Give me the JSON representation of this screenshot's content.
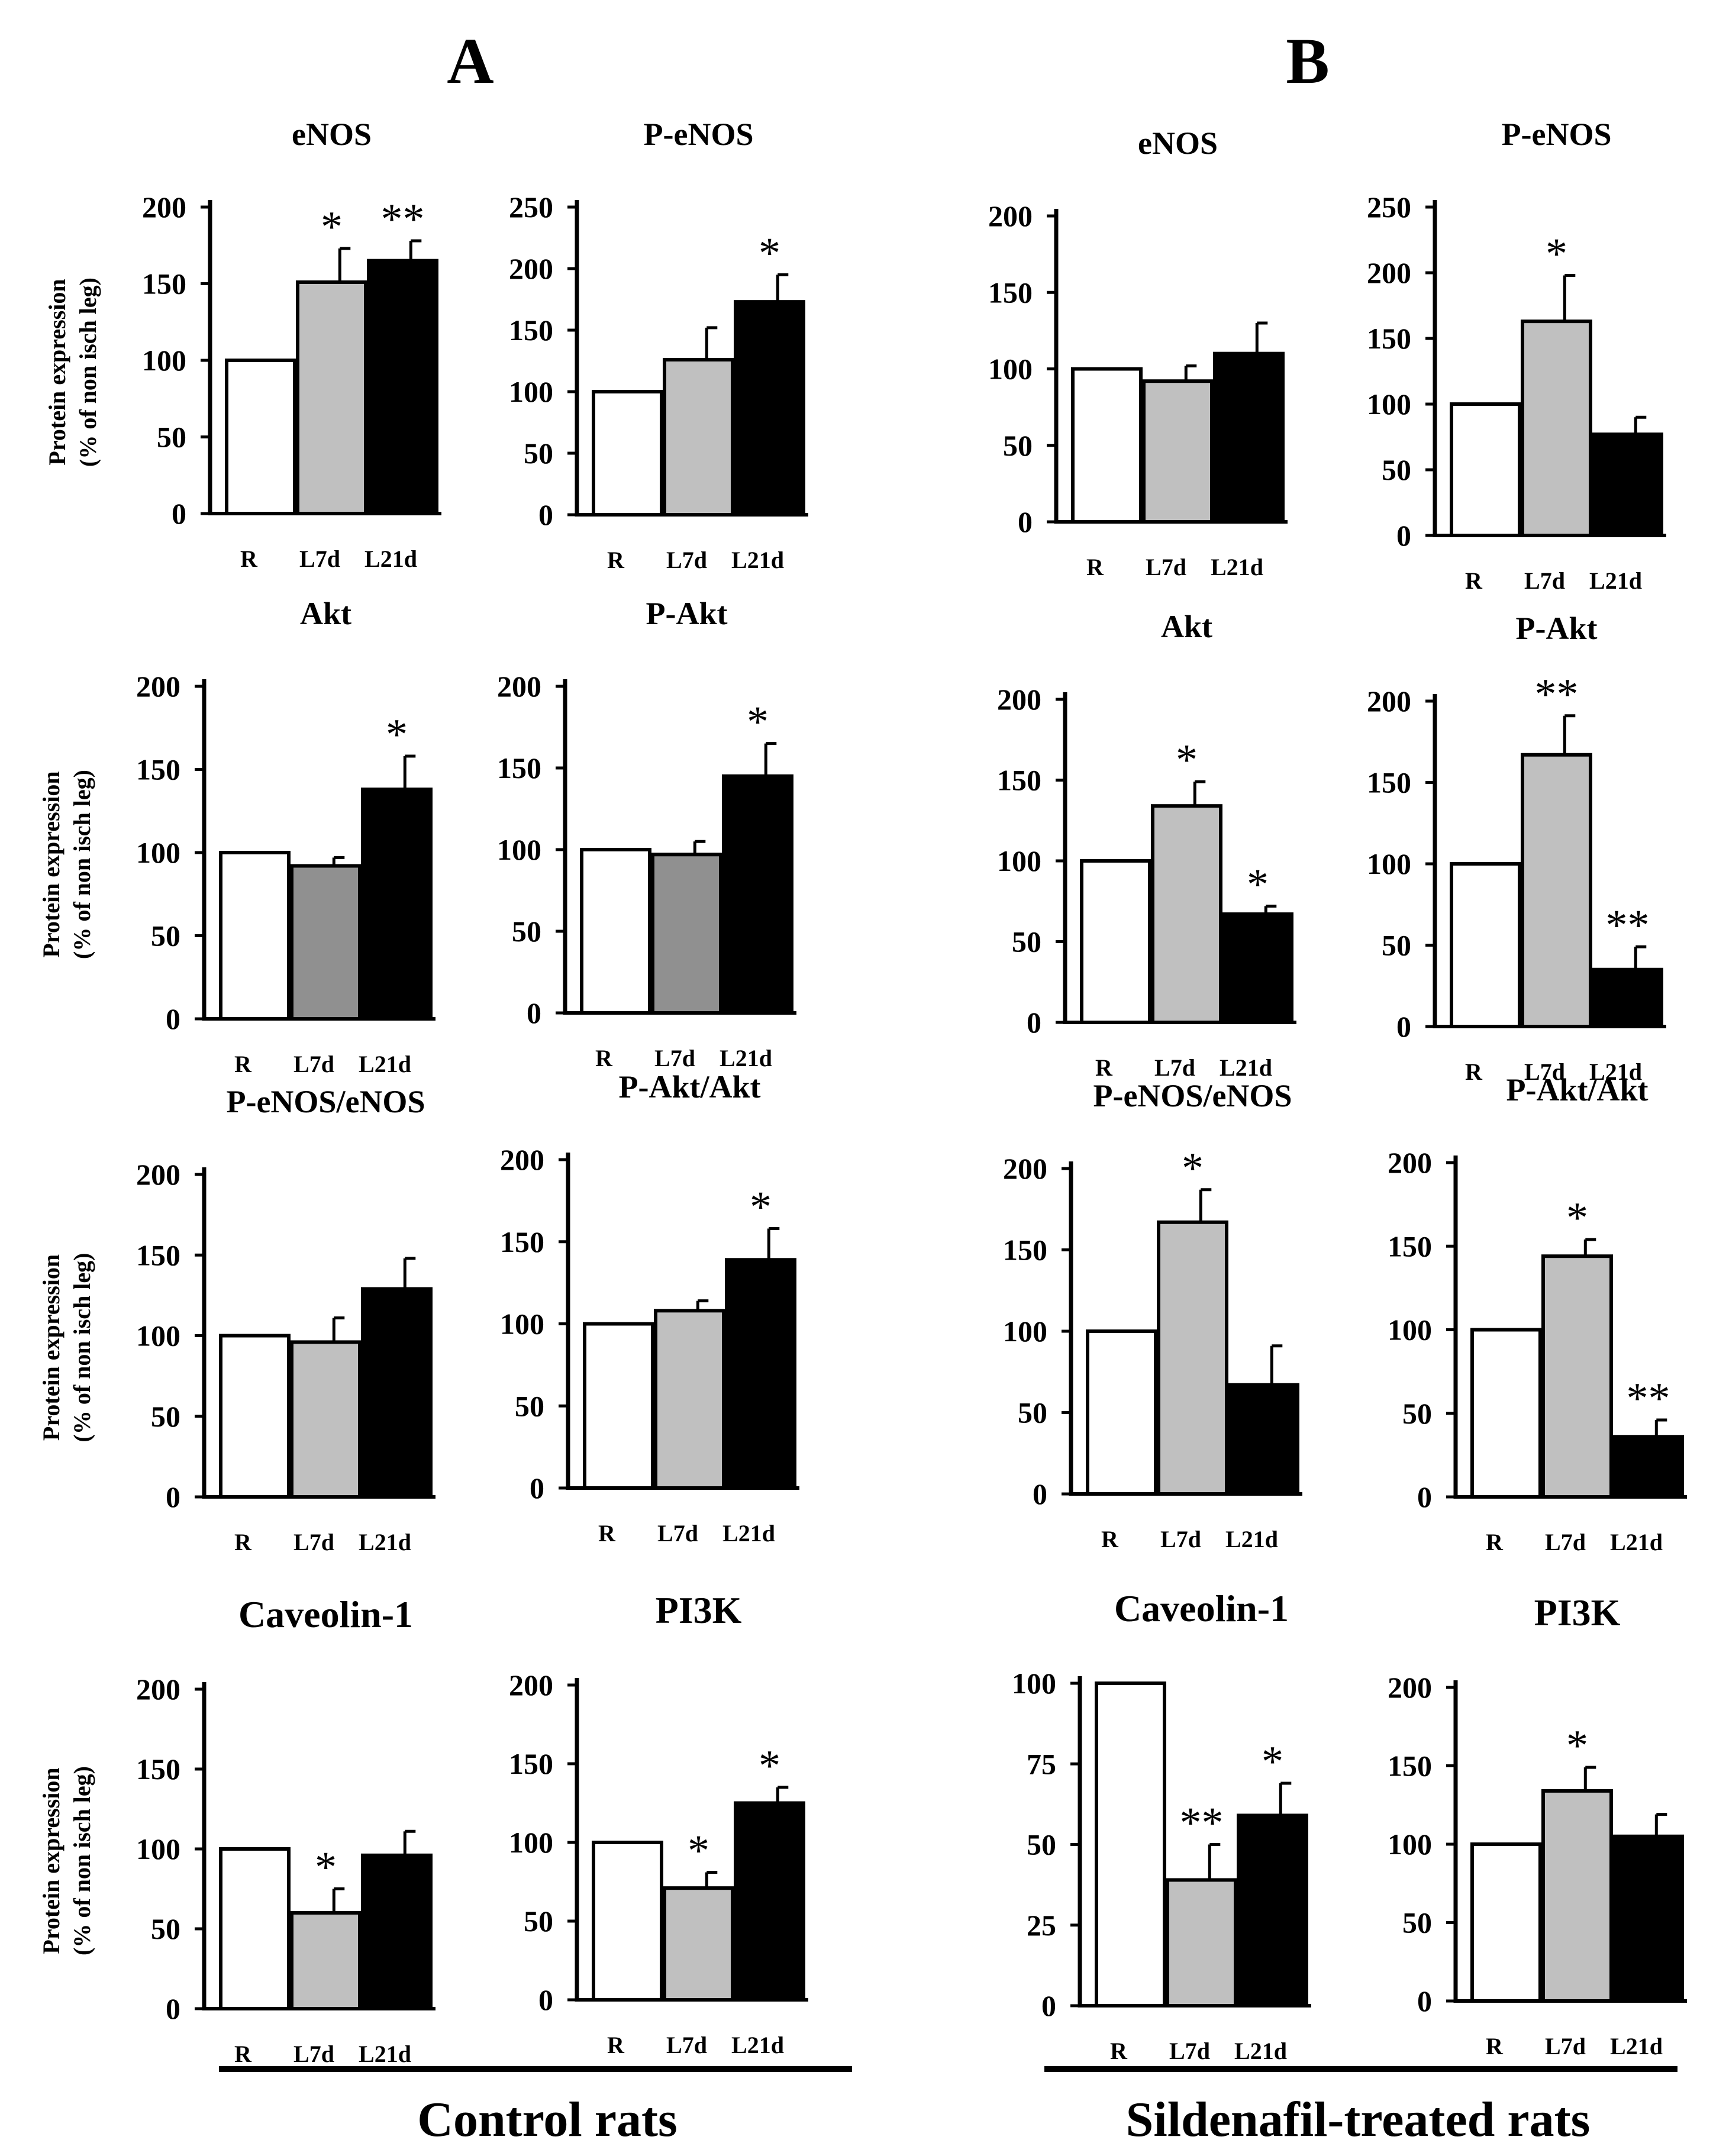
{
  "figure": {
    "panel_letters": [
      "A",
      "B"
    ],
    "group_labels": [
      "Control rats",
      "Sildenafil-treated rats"
    ],
    "ylabel_line1": "Protein expression",
    "ylabel_line2": "(% of non isch  leg)"
  },
  "colors": {
    "R": "#ffffff",
    "L7d": "#c0c0c0",
    "L7d_dark": "#909090",
    "L21d": "#000000"
  },
  "chart_data": [
    {
      "id": "A-eNOS",
      "type": "bar",
      "title": "eNOS",
      "categories": [
        "R",
        "L7d",
        "L21d"
      ],
      "values": [
        100,
        151,
        165
      ],
      "errors": [
        0,
        22,
        13
      ],
      "ylim": [
        0,
        200
      ],
      "yticks": [
        0,
        50,
        100,
        150,
        200
      ],
      "annotations": [
        "",
        "*",
        "**"
      ],
      "ylabel": "Protein expression (% of non isch  leg)"
    },
    {
      "id": "A-P-eNOS",
      "type": "bar",
      "title": "P-eNOS",
      "categories": [
        "R",
        "L7d",
        "L21d"
      ],
      "values": [
        100,
        126,
        173
      ],
      "errors": [
        0,
        26,
        22
      ],
      "ylim": [
        0,
        250
      ],
      "yticks": [
        0,
        50,
        100,
        150,
        200,
        250
      ],
      "annotations": [
        "",
        "",
        "*"
      ]
    },
    {
      "id": "B-eNOS",
      "type": "bar",
      "title": "eNOS",
      "categories": [
        "R",
        "L7d",
        "L21d"
      ],
      "values": [
        100,
        92,
        110
      ],
      "errors": [
        0,
        10,
        20
      ],
      "ylim": [
        0,
        200
      ],
      "yticks": [
        0,
        50,
        100,
        150,
        200
      ],
      "annotations": [
        "",
        "",
        ""
      ]
    },
    {
      "id": "B-P-eNOS",
      "type": "bar",
      "title": "P-eNOS",
      "categories": [
        "R",
        "L7d",
        "L21d"
      ],
      "values": [
        100,
        163,
        77
      ],
      "errors": [
        0,
        35,
        13
      ],
      "ylim": [
        0,
        250
      ],
      "yticks": [
        0,
        50,
        100,
        150,
        200,
        250
      ],
      "annotations": [
        "",
        "*",
        ""
      ]
    },
    {
      "id": "A-Akt",
      "type": "bar",
      "title": "Akt",
      "categories": [
        "R",
        "L7d",
        "L21d"
      ],
      "values": [
        100,
        92,
        138
      ],
      "errors": [
        0,
        5,
        20
      ],
      "ylim": [
        0,
        200
      ],
      "yticks": [
        0,
        50,
        100,
        150,
        200
      ],
      "annotations": [
        "",
        "",
        "*"
      ],
      "ylabel": "Protein expression (% of non isch  leg)"
    },
    {
      "id": "A-P-Akt",
      "type": "bar",
      "title": "P-Akt",
      "categories": [
        "R",
        "L7d",
        "L21d"
      ],
      "values": [
        100,
        97,
        145
      ],
      "errors": [
        0,
        8,
        20
      ],
      "ylim": [
        0,
        200
      ],
      "yticks": [
        0,
        50,
        100,
        150,
        200
      ],
      "annotations": [
        "",
        "",
        "*"
      ]
    },
    {
      "id": "B-Akt",
      "type": "bar",
      "title": "Akt",
      "categories": [
        "R",
        "L7d",
        "L21d"
      ],
      "values": [
        100,
        134,
        67
      ],
      "errors": [
        0,
        15,
        5
      ],
      "ylim": [
        0,
        200
      ],
      "yticks": [
        0,
        50,
        100,
        150,
        200
      ],
      "annotations": [
        "",
        "*",
        "*"
      ]
    },
    {
      "id": "B-P-Akt",
      "type": "bar",
      "title": "P-Akt",
      "categories": [
        "R",
        "L7d",
        "L21d"
      ],
      "values": [
        100,
        167,
        35
      ],
      "errors": [
        0,
        24,
        14
      ],
      "ylim": [
        0,
        200
      ],
      "yticks": [
        0,
        50,
        100,
        150,
        200
      ],
      "annotations": [
        "",
        "**",
        "**"
      ]
    },
    {
      "id": "A-P-eNOS/eNOS",
      "type": "bar",
      "title": "P-eNOS/eNOS",
      "categories": [
        "R",
        "L7d",
        "L21d"
      ],
      "values": [
        100,
        96,
        129
      ],
      "errors": [
        0,
        15,
        19
      ],
      "ylim": [
        0,
        200
      ],
      "yticks": [
        0,
        50,
        100,
        150,
        200
      ],
      "annotations": [
        "",
        "",
        ""
      ],
      "ylabel": "Protein expression (% of non isch  leg)"
    },
    {
      "id": "A-P-Akt/Akt",
      "type": "bar",
      "title": "P-Akt/Akt",
      "categories": [
        "R",
        "L7d",
        "L21d"
      ],
      "values": [
        100,
        108,
        139
      ],
      "errors": [
        0,
        6,
        19
      ],
      "ylim": [
        0,
        200
      ],
      "yticks": [
        0,
        50,
        100,
        150,
        200
      ],
      "annotations": [
        "",
        "",
        "*"
      ]
    },
    {
      "id": "B-P-eNOS/eNOS",
      "type": "bar",
      "title": "P-eNOS/eNOS",
      "categories": [
        "R",
        "L7d",
        "L21d"
      ],
      "values": [
        100,
        167,
        67
      ],
      "errors": [
        0,
        20,
        24
      ],
      "ylim": [
        0,
        200
      ],
      "yticks": [
        0,
        50,
        100,
        150,
        200
      ],
      "annotations": [
        "",
        "*",
        ""
      ]
    },
    {
      "id": "B-P-Akt/Akt",
      "type": "bar",
      "title": "P-Akt/Akt",
      "categories": [
        "R",
        "L7d",
        "L21d"
      ],
      "values": [
        100,
        144,
        36
      ],
      "errors": [
        0,
        10,
        10
      ],
      "ylim": [
        0,
        200
      ],
      "yticks": [
        0,
        50,
        100,
        150,
        200
      ],
      "annotations": [
        "",
        "*",
        "**"
      ]
    },
    {
      "id": "A-Caveolin-1",
      "type": "bar",
      "title": "Caveolin-1",
      "categories": [
        "R",
        "L7d",
        "L21d"
      ],
      "values": [
        100,
        60,
        96
      ],
      "errors": [
        0,
        15,
        15
      ],
      "ylim": [
        0,
        200
      ],
      "yticks": [
        0,
        50,
        100,
        150,
        200
      ],
      "annotations": [
        "",
        "*",
        ""
      ],
      "ylabel": "Protein expression (% of non isch  leg)"
    },
    {
      "id": "A-PI3K",
      "type": "bar",
      "title": "PI3K",
      "categories": [
        "R",
        "L7d",
        "L21d"
      ],
      "values": [
        100,
        71,
        125
      ],
      "errors": [
        0,
        10,
        10
      ],
      "ylim": [
        0,
        200
      ],
      "yticks": [
        0,
        50,
        100,
        150,
        200
      ],
      "annotations": [
        "",
        "*",
        "*"
      ]
    },
    {
      "id": "B-Caveolin-1",
      "type": "bar",
      "title": "Caveolin-1",
      "categories": [
        "R",
        "L7d",
        "L21d"
      ],
      "values": [
        100,
        39,
        59
      ],
      "errors": [
        0,
        11,
        10
      ],
      "ylim": [
        0,
        100
      ],
      "yticks": [
        0,
        25,
        50,
        75,
        100
      ],
      "annotations": [
        "",
        "**",
        "*"
      ]
    },
    {
      "id": "B-PI3K",
      "type": "bar",
      "title": "PI3K",
      "categories": [
        "R",
        "L7d",
        "L21d"
      ],
      "values": [
        100,
        134,
        105
      ],
      "errors": [
        0,
        15,
        14
      ],
      "ylim": [
        0,
        200
      ],
      "yticks": [
        0,
        50,
        100,
        150,
        200
      ],
      "annotations": [
        "",
        "*",
        ""
      ]
    }
  ]
}
